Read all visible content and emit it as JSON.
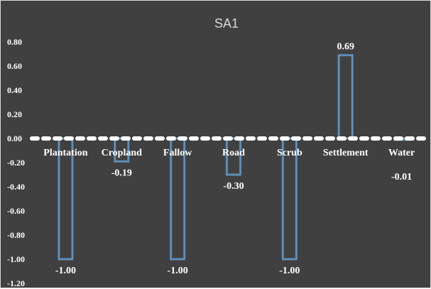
{
  "chart_data": {
    "type": "bar",
    "title": "SA1",
    "categories": [
      "Plantation",
      "Cropland",
      "Fallow",
      "Road",
      "Scrub",
      "Settlement",
      "Water"
    ],
    "values": [
      -1.0,
      -0.19,
      -1.0,
      -0.3,
      -1.0,
      0.69,
      -0.01
    ],
    "data_labels": [
      "-1.00",
      "-0.19",
      "-1.00",
      "-0.30",
      "-1.00",
      "0.69",
      "-0.01"
    ],
    "ylim": [
      -1.2,
      0.8
    ],
    "yticks": [
      "0.80",
      "0.60",
      "0.40",
      "0.20",
      "0.00",
      "-0.20",
      "-0.40",
      "-0.60",
      "-0.80",
      "-1.00",
      "-1.20"
    ],
    "ytick_values": [
      0.8,
      0.6,
      0.4,
      0.2,
      0.0,
      -0.2,
      -0.4,
      -0.6,
      -0.8,
      -1.0,
      -1.2
    ],
    "grid": false,
    "legend": "none",
    "colors": {
      "background": "#404040",
      "bar_outline": "#5b9bd5",
      "axis_line": "#ffffff",
      "text": "#ffffff",
      "title": "#d9d9d9"
    }
  }
}
